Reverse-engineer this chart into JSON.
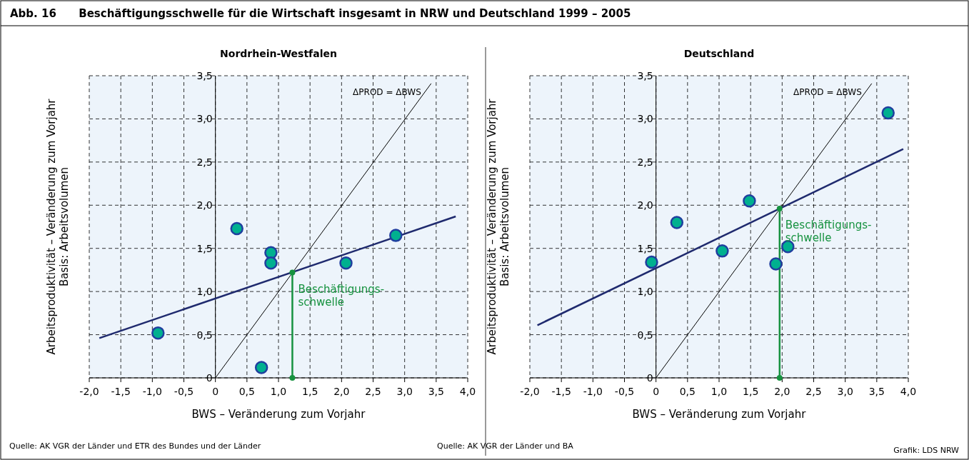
{
  "chart_data": [
    {
      "type": "scatter",
      "title": "Nordrhein-Westfalen",
      "xlabel": "BWS – Veränderung zum Vorjahr",
      "ylabel": "Arbeitsproduktivität – Veränderung zum Vorjahr\nBasis: Arbeitsvolumen",
      "annotations": [
        "Abb. 16      Beschäftigungsschwelle für die Wirtschaft insgesamt in NRW und Deutschland 1999 – 2005",
        "Quelle: AK VGR der Länder und ETR des Bundes und der Länder",
        {
          "text": "Beschäftigungs-\nschwelle",
          "x": 1.22,
          "y": 1.22
        }
      ],
      "xlim": [
        -2,
        4
      ],
      "ylim": [
        0,
        3.5
      ],
      "xticks": [
        {
          "value": -2,
          "label": "-2,0"
        },
        {
          "value": -1.5,
          "label": "-1,5"
        },
        {
          "value": -1,
          "label": "-1,0"
        },
        {
          "value": -0.5,
          "label": "-0,5"
        },
        0,
        {
          "value": 0.5,
          "label": "0,5"
        },
        {
          "value": 1,
          "label": "1,0"
        },
        {
          "value": 1.5,
          "label": "1,5"
        },
        {
          "value": 2,
          "label": "2,0"
        },
        {
          "value": 2.5,
          "label": "2,5"
        },
        {
          "value": 3,
          "label": "3,0"
        },
        {
          "value": 3.5,
          "label": "3,5"
        },
        {
          "value": 4,
          "label": "4,0"
        }
      ],
      "yticks": [
        0,
        {
          "value": 0.5,
          "label": "0,5"
        },
        {
          "value": 1,
          "label": "1,0"
        },
        {
          "value": 1.5,
          "label": "1,5"
        },
        {
          "value": 2,
          "label": "2,0"
        },
        {
          "value": 2.5,
          "label": "2,5"
        },
        {
          "value": 3,
          "label": "3,0"
        },
        {
          "value": 3.5,
          "label": "3,5"
        }
      ],
      "grid": true,
      "marker": "circle",
      "series": [
        {
          "type": "line",
          "color": "#1f2a6e",
          "x": [
            -1.84,
            3.81
          ],
          "values": [
            0.46,
            1.87
          ],
          "marker": "none"
        },
        {
          "type": "line",
          "name": "ΔPROD = ΔBWS",
          "color": "#000000",
          "x": [
            0,
            3.42
          ],
          "values": [
            0,
            3.41
          ],
          "marker": "none"
        },
        {
          "type": "line",
          "color": "#16923f",
          "x": [
            1.22,
            1.22
          ],
          "values": [
            0,
            1.22
          ],
          "marker": "circle"
        },
        {
          "color": "#00b08f",
          "x": [
            -0.91,
            0.34,
            0.88,
            0.88,
            0.73,
            2.07,
            2.86
          ],
          "values": [
            0.52,
            1.73,
            1.45,
            1.33,
            0.12,
            1.33,
            1.65
          ]
        }
      ]
    },
    {
      "type": "scatter",
      "title": "Deutschland",
      "xlabel": "BWS – Veränderung zum Vorjahr",
      "ylabel": "Arbeitsproduktivität – Veränderung zum Vorjahr\nBasis: Arbeitsvolumen",
      "annotations": [
        "Quelle: AK VGR der Länder und BA",
        "Grafik: LDS NRW",
        {
          "text": "Beschäftigungs-\nschwelle",
          "x": 1.96,
          "y": 1.96
        }
      ],
      "xlim": [
        -2,
        4
      ],
      "ylim": [
        0,
        3.5
      ],
      "xticks": [
        {
          "value": -2,
          "label": "-2,0"
        },
        {
          "value": -1.5,
          "label": "-1,5"
        },
        {
          "value": -1,
          "label": "-1,0"
        },
        {
          "value": -0.5,
          "label": "-0,5"
        },
        0,
        {
          "value": 0.5,
          "label": "0,5"
        },
        {
          "value": 1,
          "label": "1,0"
        },
        {
          "value": 1.5,
          "label": "1,5"
        },
        {
          "value": 2,
          "label": "2,0"
        },
        {
          "value": 2.5,
          "label": "2,5"
        },
        {
          "value": 3,
          "label": "3,0"
        },
        {
          "value": 3.5,
          "label": "3,5"
        },
        {
          "value": 4,
          "label": "4,0"
        }
      ],
      "yticks": [
        0,
        {
          "value": 0.5,
          "label": "0,5"
        },
        {
          "value": 1,
          "label": "1,0"
        },
        {
          "value": 1.5,
          "label": "1,5"
        },
        {
          "value": 2,
          "label": "2,0"
        },
        {
          "value": 2.5,
          "label": "2,5"
        },
        {
          "value": 3,
          "label": "3,0"
        },
        {
          "value": 3.5,
          "label": "3,5"
        }
      ],
      "grid": true,
      "marker": "circle",
      "series": [
        {
          "type": "line",
          "color": "#1f2a6e",
          "x": [
            -1.88,
            3.92
          ],
          "values": [
            0.61,
            2.65
          ],
          "marker": "none"
        },
        {
          "type": "line",
          "name": "ΔPROD = ΔBWS",
          "color": "#000000",
          "x": [
            0,
            3.42
          ],
          "values": [
            0,
            3.41
          ],
          "marker": "none"
        },
        {
          "type": "line",
          "color": "#16923f",
          "x": [
            1.96,
            1.96
          ],
          "values": [
            0,
            1.96
          ],
          "marker": "circle"
        },
        {
          "color": "#00b08f",
          "x": [
            -0.07,
            0.33,
            1.05,
            1.48,
            1.9,
            2.09,
            3.68
          ],
          "values": [
            1.34,
            1.8,
            1.47,
            2.05,
            1.32,
            1.52,
            3.07
          ]
        }
      ]
    }
  ]
}
